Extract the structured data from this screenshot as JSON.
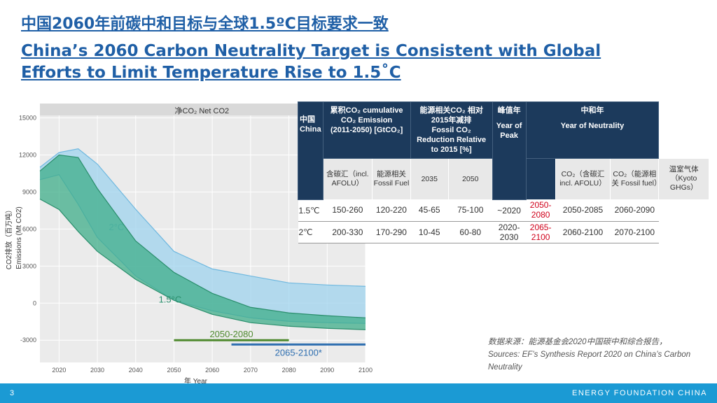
{
  "header": {
    "title_zh": "中国2060年前碳中和目标与全球1.5ºC目标要求一致",
    "title_en": "China’s 2060 Carbon Neutrality Target is Consistent with Global Efforts to Limit Temperature Rise to 1.5˚C"
  },
  "chart_data": {
    "type": "band",
    "panel_title": "净CO₂  Net CO2",
    "y_label_zh": "CO2排放（百万吨）",
    "y_label_en": "Emissions (Mt CO2)",
    "x_label": "年  Year",
    "x": [
      2015,
      2020,
      2025,
      2030,
      2040,
      2050,
      2060,
      2070,
      2080,
      2090,
      2100
    ],
    "series": [
      {
        "name": "2°C",
        "color": "#9fd3ee",
        "line_color": "#6fb8df",
        "upper": [
          11000,
          12200,
          12500,
          11260,
          7600,
          4190,
          2770,
          2200,
          1640,
          1470,
          1360
        ],
        "lower": [
          10000,
          10400,
          8000,
          5320,
          2200,
          230,
          -620,
          -1190,
          -1470,
          -1580,
          -1640
        ]
      },
      {
        "name": "1.5°C",
        "color": "#3fae8a",
        "line_color": "#2a8e6c",
        "upper": [
          10700,
          12000,
          11800,
          9280,
          5040,
          2490,
          790,
          -340,
          -790,
          -1020,
          -1190
        ],
        "lower": [
          8430,
          7580,
          5800,
          4190,
          1920,
          230,
          -910,
          -1580,
          -1870,
          -2040,
          -2150
        ]
      }
    ],
    "series_label_points": [
      [
        2033,
        5900
      ],
      [
        2046,
        50
      ]
    ],
    "ranges": [
      {
        "label": "2050-2080",
        "color": "#4f8a2f",
        "x": [
          2050,
          2080
        ],
        "y": -3000
      },
      {
        "label": "2065-2100*",
        "color": "#2f6fb0",
        "x": [
          2065,
          2100
        ],
        "y": -3350
      }
    ],
    "xlim": [
      2015,
      2100
    ],
    "ylim": [
      -4800,
      15200
    ],
    "xticks": [
      2020,
      2030,
      2040,
      2050,
      2060,
      2070,
      2080,
      2090,
      2100
    ],
    "yticks": [
      -3000,
      0,
      3000,
      6000,
      9000,
      12000,
      15000
    ],
    "grid": true
  },
  "table": {
    "headers": [
      {
        "zh": "中国",
        "en": "China"
      },
      {
        "zh": "累积CO₂ cumulative CO₂ Emission",
        "en": "(2011-2050) [GtCO₂]"
      },
      {
        "zh": "能源相关CO₂ 相对2015年减排",
        "en": "Fossil CO₂ Reduction Relative to 2015 [%]"
      },
      {
        "zh": "峰值年",
        "en": "Year of Peak"
      },
      {
        "zh": "中和年",
        "en": "Year of Neutrality"
      }
    ],
    "subheaders": [
      "含碳汇（incl. AFOLU）",
      "能源相关 Fossil Fuel",
      "2035",
      "2050",
      "CO₂（含碳汇 incl. AFOLU）",
      "CO₂（能源相关 Fossil fuel）",
      "温室气体（Kyoto GHGs）"
    ],
    "rows": [
      [
        "1.5℃",
        "150-260",
        "120-220",
        "45-65",
        "75-100",
        "~2020",
        "2050-2080",
        "2050-2085",
        "2060-2090"
      ],
      [
        "2℃",
        "200-330",
        "170-290",
        "10-45",
        "60-80",
        "2020-2030",
        "2065-2100",
        "2060-2100",
        "2070-2100"
      ]
    ],
    "highlight_column": 6,
    "highlight_color": "#d0021b"
  },
  "source": {
    "zh": "数据来源：能源基金会2020中国碳中和综合报告，",
    "en": "Sources: EF’s Synthesis Report 2020 on China’s Carbon Neutrality"
  },
  "footer": {
    "page": "3",
    "org": "ENERGY FOUNDATION CHINA"
  }
}
